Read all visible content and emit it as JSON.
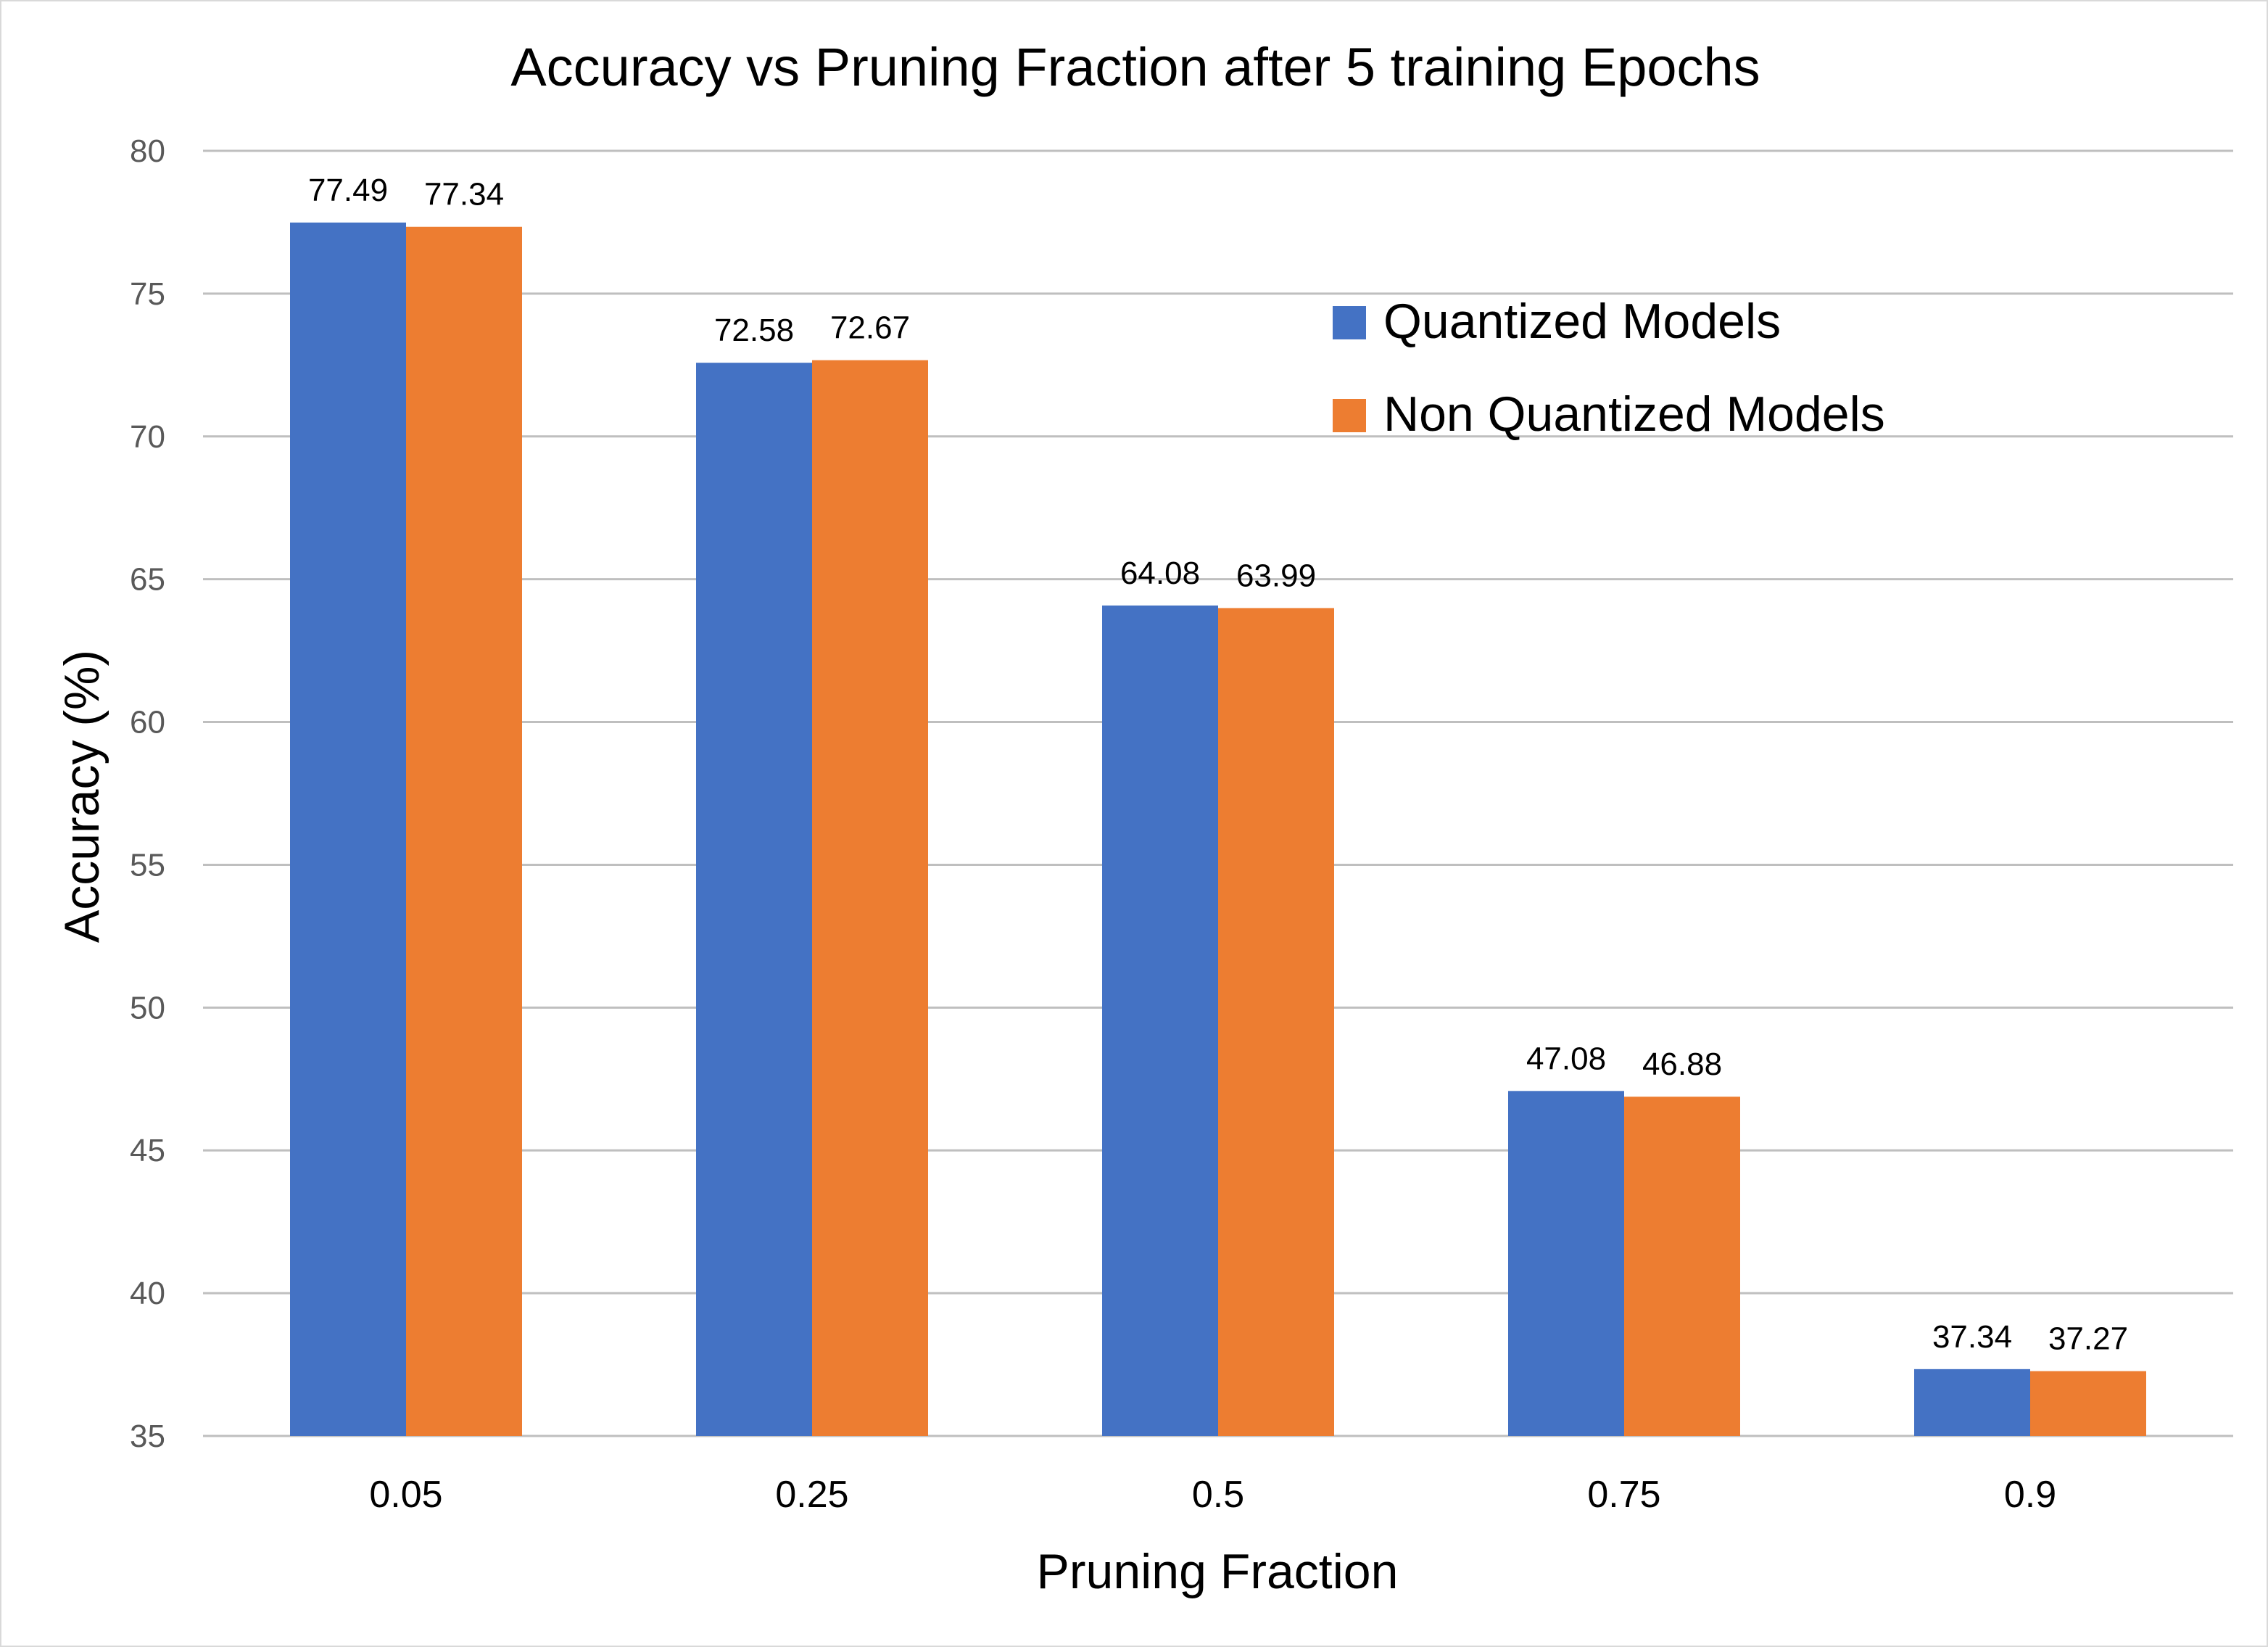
{
  "chart_data": {
    "type": "bar",
    "title": "Accuracy vs Pruning Fraction after 5 training Epochs",
    "xlabel": "Pruning Fraction",
    "ylabel": "Accuracy (%)",
    "categories": [
      "0.05",
      "0.25",
      "0.5",
      "0.75",
      "0.9"
    ],
    "series": [
      {
        "name": "Quantized Models",
        "color": "#4472C4",
        "values": [
          77.49,
          72.58,
          64.08,
          47.08,
          37.34
        ]
      },
      {
        "name": "Non Quantized Models",
        "color": "#ED7D31",
        "values": [
          77.34,
          72.67,
          63.99,
          46.88,
          37.27
        ]
      }
    ],
    "ylim": [
      35,
      80
    ],
    "yticks": [
      35,
      40,
      45,
      50,
      55,
      60,
      65,
      70,
      75,
      80
    ],
    "grid": true,
    "legend_position": "top-right"
  }
}
